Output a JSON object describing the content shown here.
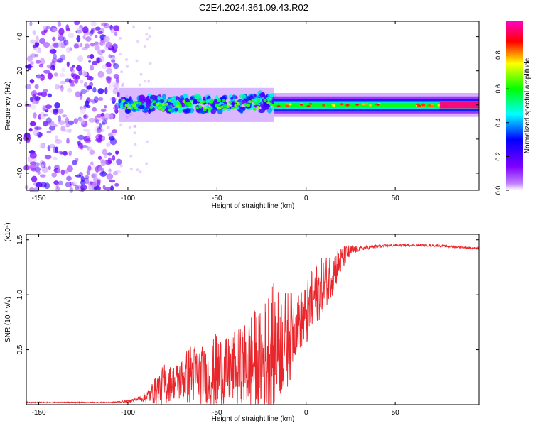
{
  "title": "C2E4.2024.361.09.43.R02",
  "chart_data": [
    {
      "type": "heatmap",
      "xlabel": "Height of straight line (km)",
      "ylabel": "Frequency (Hz)",
      "xlim": [
        -157,
        97
      ],
      "ylim": [
        -50,
        49
      ],
      "x_ticks": [
        -150,
        -100,
        -50,
        0,
        50
      ],
      "y_ticks": [
        -40,
        -20,
        0,
        20,
        40
      ],
      "colorbar": {
        "label": "Normalized spectral amplitude",
        "range": [
          0,
          1
        ],
        "ticks": [
          "0.0",
          "0.2",
          "0.4",
          "0.6",
          "0.8"
        ],
        "colors": [
          "#ffffff",
          "#8000ff",
          "#0000ff",
          "#00ffff",
          "#00ff00",
          "#ffff00",
          "#ff0000",
          "#ff00c0"
        ]
      },
      "regions": [
        {
          "x": [
            -157,
            -105
          ],
          "freq": [
            -50,
            49
          ],
          "amplitude": 0.15
        },
        {
          "x": [
            -105,
            -18
          ],
          "freq": [
            -10,
            10
          ],
          "amplitude": 0.45
        },
        {
          "x": [
            -18,
            97
          ],
          "freq": [
            -4,
            4
          ],
          "amplitude": 0.55
        },
        {
          "x": [
            75,
            97
          ],
          "freq": [
            -2,
            2
          ],
          "amplitude": 0.95
        }
      ]
    },
    {
      "type": "line",
      "xlabel": "Height of straight line (km)",
      "ylabel": "SNR (10 * v/v)",
      "y_multiplier": "(x10⁴)",
      "xlim": [
        -157,
        97
      ],
      "ylim": [
        0,
        1.55
      ],
      "x_ticks": [
        -150,
        -100,
        -50,
        0,
        50
      ],
      "y_ticks": [
        "0.5",
        "1.0",
        "1.5"
      ],
      "series": [
        {
          "color": "#e8262b",
          "x": [
            -157,
            -130,
            -110,
            -100,
            -95,
            -90,
            -85,
            -80,
            -75,
            -70,
            -65,
            -60,
            -55,
            -50,
            -45,
            -40,
            -35,
            -30,
            -25,
            -20,
            -15,
            -10,
            -5,
            0,
            5,
            10,
            15,
            20,
            25,
            30,
            40,
            50,
            60,
            70,
            80,
            90,
            97
          ],
          "mean": [
            0.02,
            0.02,
            0.02,
            0.03,
            0.05,
            0.07,
            0.12,
            0.18,
            0.2,
            0.22,
            0.28,
            0.28,
            0.25,
            0.3,
            0.3,
            0.32,
            0.35,
            0.38,
            0.4,
            0.52,
            0.55,
            0.6,
            0.75,
            0.8,
            1.0,
            1.1,
            1.2,
            1.32,
            1.4,
            1.42,
            1.44,
            1.45,
            1.45,
            1.45,
            1.44,
            1.43,
            1.42
          ],
          "amp": [
            0.005,
            0.005,
            0.005,
            0.01,
            0.02,
            0.05,
            0.12,
            0.2,
            0.15,
            0.2,
            0.28,
            0.28,
            0.24,
            0.38,
            0.3,
            0.35,
            0.38,
            0.5,
            0.45,
            0.62,
            0.5,
            0.45,
            0.25,
            0.3,
            0.3,
            0.25,
            0.2,
            0.12,
            0.06,
            0.02,
            0.015,
            0.01,
            0.01,
            0.01,
            0.01,
            0.01,
            0.01
          ]
        }
      ]
    }
  ]
}
